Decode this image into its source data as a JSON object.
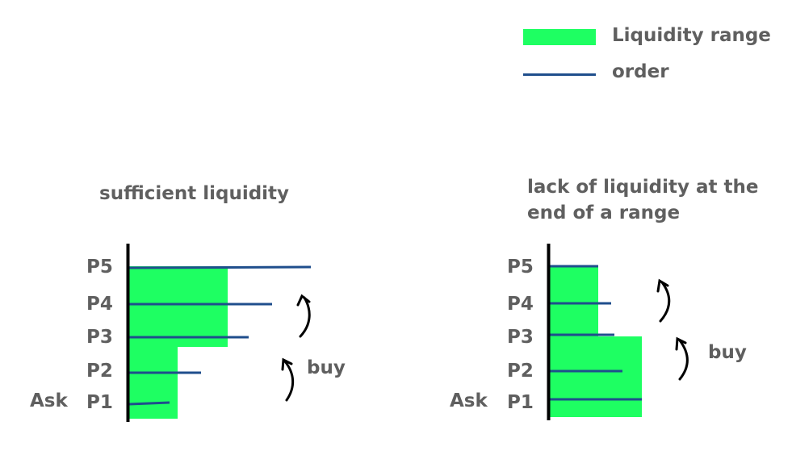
{
  "legend": {
    "liquidity_label": "Liquidity range",
    "order_label": "order"
  },
  "colors": {
    "liquidity": "#1eff62",
    "order": "#1f4e8c",
    "axis": "#000000",
    "text": "#5f5f5f"
  },
  "panels": [
    {
      "title_lines": [
        "sufficient liquidity"
      ],
      "ask_label": "Ask",
      "buy_label": "buy",
      "price_labels": [
        "P5",
        "P4",
        "P3",
        "P2",
        "P1"
      ]
    },
    {
      "title_lines": [
        "lack of liquidity at the",
        "end of a range"
      ],
      "ask_label": "Ask",
      "buy_label": "buy",
      "price_labels": [
        "P5",
        "P4",
        "P3",
        "P2",
        "P1"
      ]
    }
  ]
}
